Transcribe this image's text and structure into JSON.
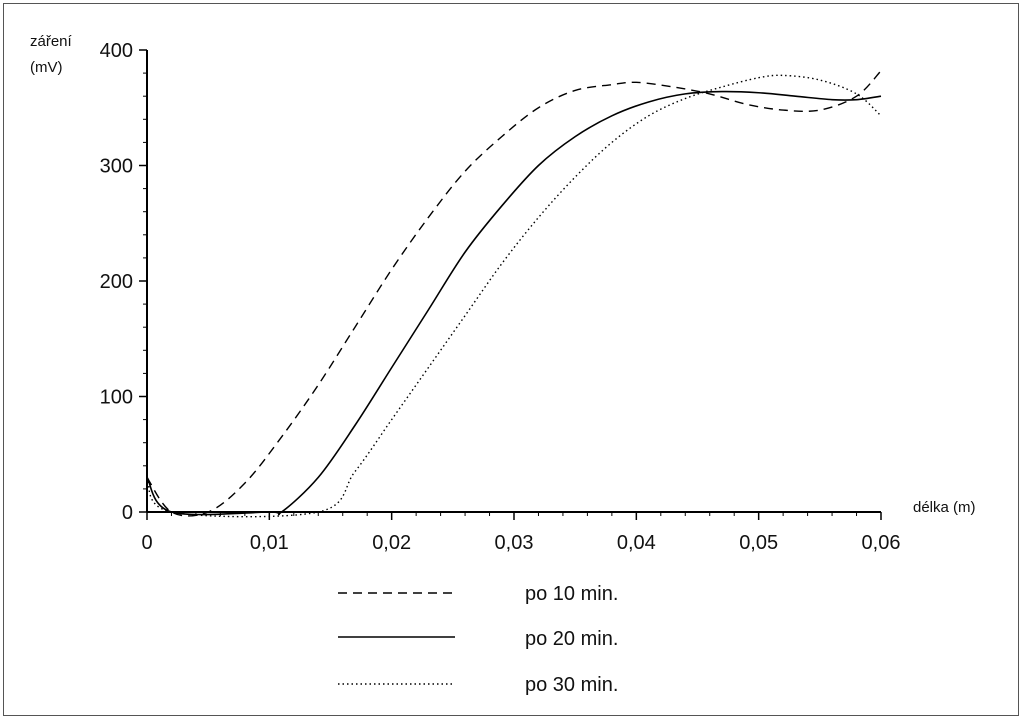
{
  "chart_data": {
    "type": "line",
    "title": "",
    "ylabel": [
      "záření",
      "(mV)"
    ],
    "xlabel": "délka  (m)",
    "xlim": [
      0,
      0.06
    ],
    "ylim": [
      0,
      400
    ],
    "x_ticks": [
      0,
      0.01,
      0.02,
      0.03,
      0.04,
      0.05,
      0.06
    ],
    "x_tick_labels": [
      "0",
      "0,01",
      "0,02",
      "0,03",
      "0,04",
      "0,05",
      "0,06"
    ],
    "y_ticks": [
      0,
      100,
      200,
      300,
      400
    ],
    "y_tick_labels": [
      "0",
      "100",
      "200",
      "300",
      "400"
    ],
    "grid": false,
    "legend": "bottom",
    "series": [
      {
        "name": "po 10 min.",
        "style": "dashed",
        "x": [
          0,
          0.002,
          0.005,
          0.008,
          0.011,
          0.014,
          0.017,
          0.02,
          0.023,
          0.026,
          0.029,
          0.032,
          0.035,
          0.038,
          0.04,
          0.043,
          0.046,
          0.049,
          0.052,
          0.055,
          0.058,
          0.06
        ],
        "y": [
          30,
          0,
          0,
          25,
          65,
          110,
          160,
          210,
          255,
          295,
          325,
          350,
          365,
          370,
          372,
          368,
          362,
          353,
          348,
          348,
          360,
          382
        ]
      },
      {
        "name": "po 20 min.",
        "style": "solid",
        "x": [
          0,
          0.002,
          0.01,
          0.011,
          0.014,
          0.017,
          0.02,
          0.023,
          0.026,
          0.029,
          0.032,
          0.035,
          0.038,
          0.041,
          0.044,
          0.047,
          0.05,
          0.053,
          0.056,
          0.058,
          0.06
        ],
        "y": [
          30,
          0,
          0,
          0,
          30,
          75,
          125,
          175,
          225,
          265,
          300,
          325,
          343,
          355,
          362,
          364,
          363,
          360,
          357,
          357,
          360
        ]
      },
      {
        "name": "po 30 min.",
        "style": "dotted",
        "x": [
          0,
          0.002,
          0.014,
          0.017,
          0.02,
          0.023,
          0.026,
          0.029,
          0.032,
          0.035,
          0.038,
          0.041,
          0.044,
          0.047,
          0.05,
          0.052,
          0.055,
          0.058,
          0.06
        ],
        "y": [
          30,
          0,
          0,
          35,
          80,
          125,
          170,
          215,
          255,
          290,
          320,
          343,
          358,
          368,
          376,
          378,
          374,
          362,
          343
        ]
      }
    ]
  }
}
